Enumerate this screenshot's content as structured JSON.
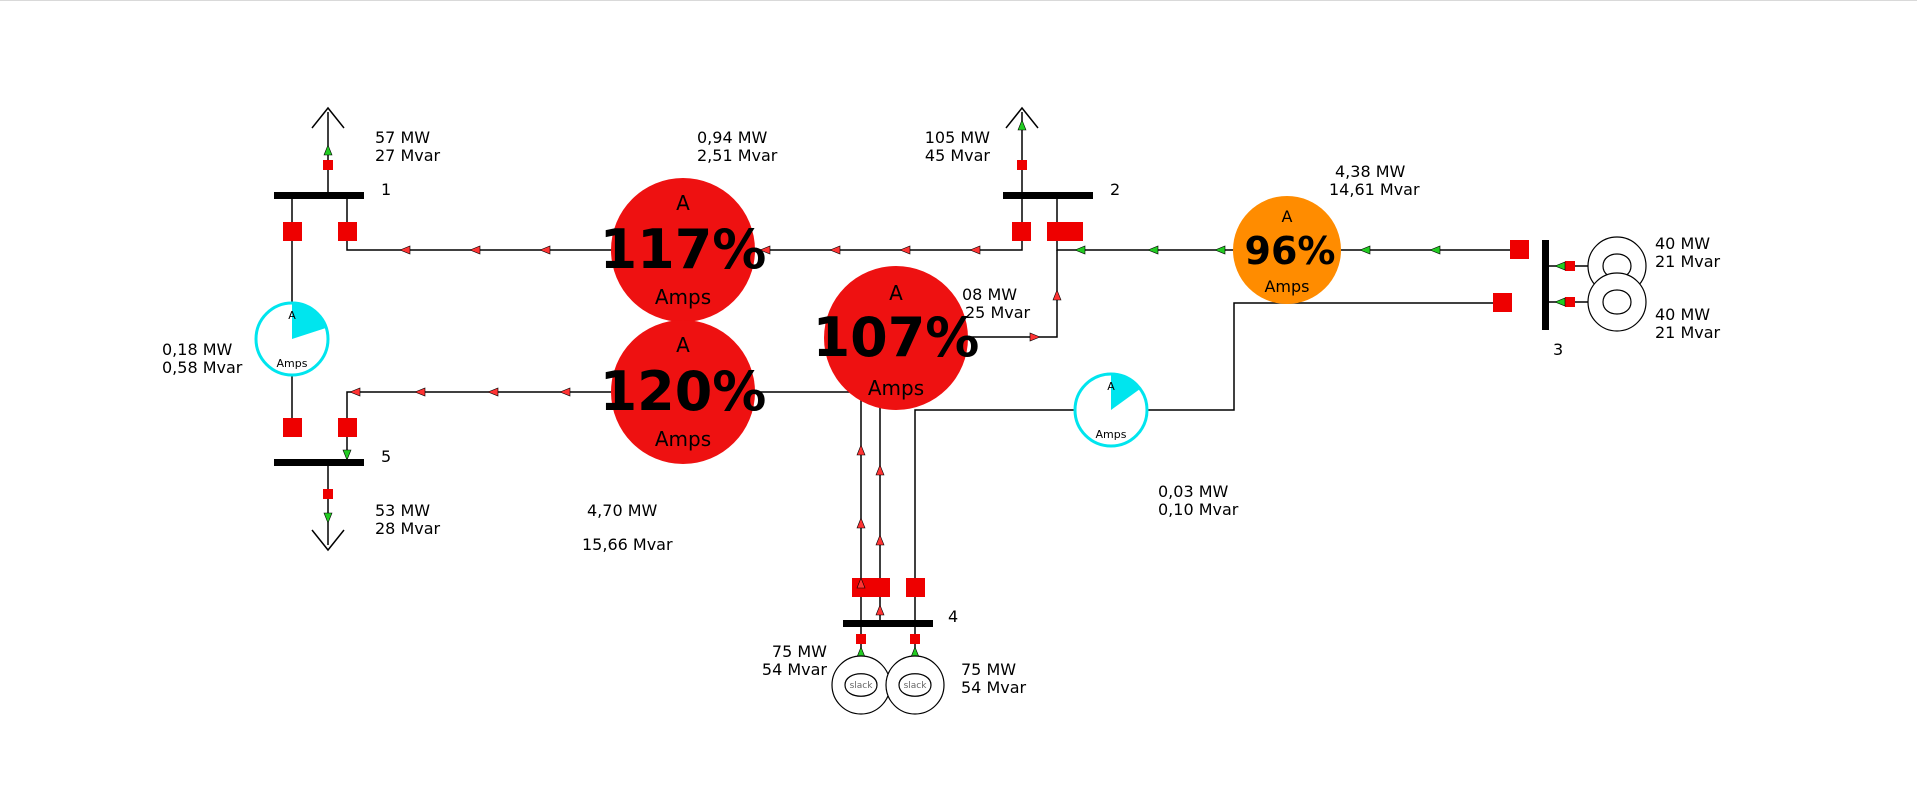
{
  "colors": {
    "overload": "#ee1111",
    "warning": "#ff8c00",
    "normal_gauge": "#00e5ee",
    "breaker": "#ee0000",
    "flow_arrow": "#ff3333",
    "flow_arrow_ok": "#22cc22",
    "line": "#000000"
  },
  "buses": [
    {
      "id": "bus1",
      "label": "1"
    },
    {
      "id": "bus2",
      "label": "2"
    },
    {
      "id": "bus3",
      "label": "3"
    },
    {
      "id": "bus4",
      "label": "4"
    },
    {
      "id": "bus5",
      "label": "5"
    }
  ],
  "loads": {
    "bus1": {
      "mw": "57 MW",
      "mvar": "27 Mvar"
    },
    "bus2": {
      "mw": "105 MW",
      "mvar": "45 Mvar"
    },
    "bus5": {
      "mw": "53 MW",
      "mvar": "28 Mvar"
    }
  },
  "generators": {
    "bus3_a": {
      "mw": "40 MW",
      "mvar": "21 Mvar"
    },
    "bus3_b": {
      "mw": "40 MW",
      "mvar": "21 Mvar"
    },
    "bus4_a": {
      "mw": "75 MW",
      "mvar": "54 Mvar",
      "icon": "slack"
    },
    "bus4_b": {
      "mw": "75 MW",
      "mvar": "54 Mvar",
      "icon": "slack"
    }
  },
  "line_losses": {
    "l12": {
      "mw": "0,94 MW",
      "mvar": "2,51 Mvar"
    },
    "l23": {
      "mw": "4,38 MW",
      "mvar": "14,61 Mvar"
    },
    "l24": {
      "mw": "08 MW",
      "mvar": "25 Mvar"
    },
    "l15": {
      "mw": "0,18 MW",
      "mvar": "0,58 Mvar"
    },
    "l45": {
      "mw": "4,70 MW",
      "mvar": "15,66 Mvar"
    },
    "l34": {
      "mw": "0,03 MW",
      "mvar": "0,10 Mvar"
    }
  },
  "gauges": {
    "g12": {
      "top": "A",
      "pct": "117%",
      "bottom": "Amps",
      "loading": 1.17
    },
    "g45": {
      "top": "A",
      "pct": "120%",
      "bottom": "Amps",
      "loading": 1.2
    },
    "g24": {
      "top": "A",
      "pct": "107%",
      "bottom": "Amps",
      "loading": 1.07
    },
    "g23": {
      "top": "A",
      "pct": "96%",
      "bottom": "Amps",
      "loading": 0.96
    },
    "g15": {
      "top": "A",
      "bottom": "Amps",
      "loading": 0.2
    },
    "g34": {
      "top": "A",
      "bottom": "Amps",
      "loading": 0.15
    }
  }
}
